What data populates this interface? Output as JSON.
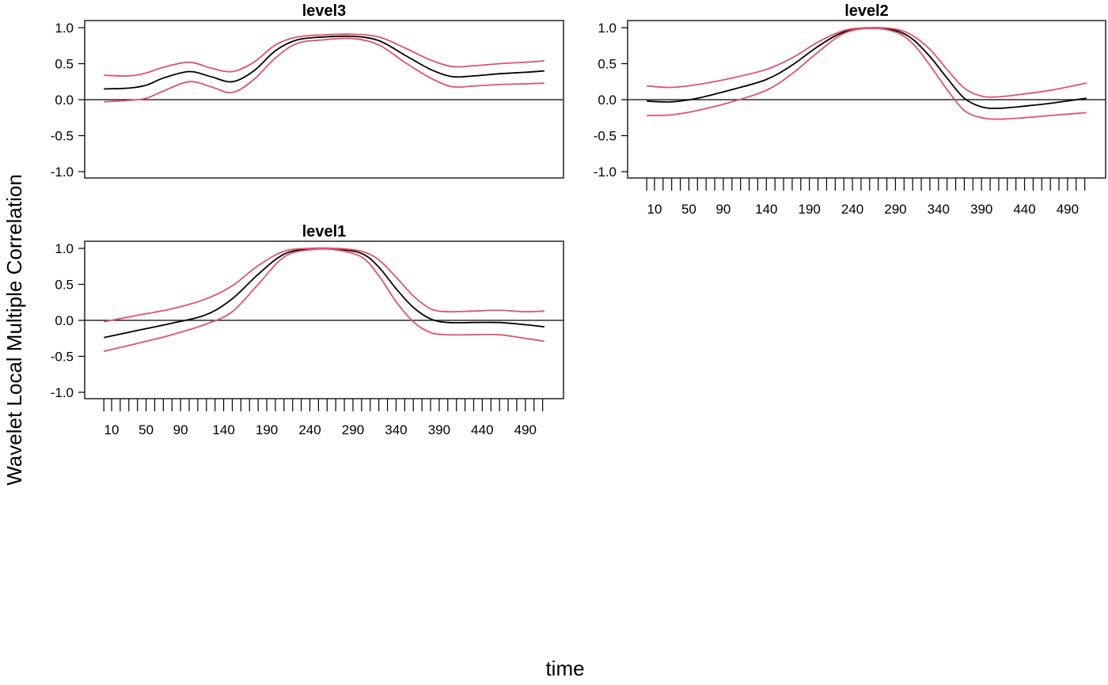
{
  "figure": {
    "ylabel": "Wavelet Local Multiple Correlation",
    "xlabel": "time"
  },
  "chart_data": [
    {
      "type": "line",
      "title": "level3",
      "xlim": [
        1,
        512
      ],
      "ylim": [
        -1.0,
        1.0
      ],
      "y_ticks": [
        "-1.0",
        "-0.5",
        "0.0",
        "0.5",
        "1.0"
      ],
      "x_ticks_shown": false,
      "reference_line": 0,
      "colors": {
        "estimate": "#000000",
        "bounds": "#DF536B"
      },
      "x": [
        1,
        30,
        50,
        70,
        100,
        125,
        150,
        175,
        200,
        225,
        255,
        290,
        320,
        350,
        380,
        405,
        430,
        460,
        490,
        512
      ],
      "series": [
        {
          "values": [
            0.15,
            0.16,
            0.2,
            0.3,
            0.39,
            0.32,
            0.25,
            0.4,
            0.68,
            0.83,
            0.87,
            0.88,
            0.82,
            0.62,
            0.42,
            0.32,
            0.33,
            0.36,
            0.38,
            0.4
          ]
        },
        {
          "values": [
            0.34,
            0.33,
            0.37,
            0.45,
            0.52,
            0.44,
            0.39,
            0.52,
            0.76,
            0.87,
            0.9,
            0.91,
            0.87,
            0.72,
            0.55,
            0.46,
            0.47,
            0.5,
            0.52,
            0.54
          ]
        },
        {
          "values": [
            -0.03,
            -0.01,
            0.02,
            0.12,
            0.25,
            0.18,
            0.1,
            0.28,
            0.58,
            0.78,
            0.83,
            0.85,
            0.76,
            0.52,
            0.3,
            0.18,
            0.19,
            0.21,
            0.22,
            0.23
          ]
        }
      ]
    },
    {
      "type": "line",
      "title": "level2",
      "xlim": [
        1,
        512
      ],
      "ylim": [
        -1.0,
        1.0
      ],
      "y_ticks": [
        "-1.0",
        "-0.5",
        "0.0",
        "0.5",
        "1.0"
      ],
      "x_tick_values": [
        1,
        10,
        20,
        30,
        40,
        50,
        60,
        70,
        80,
        90,
        100,
        110,
        120,
        130,
        140,
        150,
        160,
        170,
        180,
        190,
        200,
        210,
        220,
        230,
        240,
        250,
        260,
        270,
        280,
        290,
        300,
        310,
        320,
        330,
        340,
        350,
        360,
        370,
        380,
        390,
        400,
        410,
        420,
        430,
        440,
        450,
        460,
        470,
        480,
        490,
        500,
        510
      ],
      "x_tick_labels": [
        "10",
        "50",
        "90",
        "140",
        "190",
        "240",
        "290",
        "340",
        "390",
        "440",
        "490"
      ],
      "reference_line": 0,
      "colors": {
        "estimate": "#000000",
        "bounds": "#DF536B"
      },
      "x": [
        1,
        30,
        60,
        100,
        140,
        170,
        200,
        230,
        260,
        290,
        310,
        330,
        350,
        370,
        390,
        410,
        440,
        470,
        512
      ],
      "series": [
        {
          "values": [
            -0.02,
            -0.03,
            0.02,
            0.14,
            0.28,
            0.48,
            0.74,
            0.94,
            0.99,
            0.96,
            0.84,
            0.6,
            0.3,
            0.02,
            -0.1,
            -0.12,
            -0.09,
            -0.05,
            0.02
          ]
        },
        {
          "values": [
            0.19,
            0.17,
            0.21,
            0.3,
            0.42,
            0.58,
            0.8,
            0.96,
            1.0,
            0.98,
            0.89,
            0.7,
            0.42,
            0.16,
            0.05,
            0.04,
            0.08,
            0.13,
            0.23
          ]
        },
        {
          "values": [
            -0.22,
            -0.21,
            -0.15,
            -0.03,
            0.13,
            0.36,
            0.66,
            0.92,
            0.99,
            0.94,
            0.78,
            0.48,
            0.14,
            -0.15,
            -0.25,
            -0.27,
            -0.25,
            -0.22,
            -0.18
          ]
        }
      ]
    },
    {
      "type": "line",
      "title": "level1",
      "xlim": [
        1,
        512
      ],
      "ylim": [
        -1.0,
        1.0
      ],
      "y_ticks": [
        "-1.0",
        "-0.5",
        "0.0",
        "0.5",
        "1.0"
      ],
      "x_tick_values": [
        1,
        10,
        20,
        30,
        40,
        50,
        60,
        70,
        80,
        90,
        100,
        110,
        120,
        130,
        140,
        150,
        160,
        170,
        180,
        190,
        200,
        210,
        220,
        230,
        240,
        250,
        260,
        270,
        280,
        290,
        300,
        310,
        320,
        330,
        340,
        350,
        360,
        370,
        380,
        390,
        400,
        410,
        420,
        430,
        440,
        450,
        460,
        470,
        480,
        490,
        500,
        510
      ],
      "x_tick_labels": [
        "10",
        "50",
        "90",
        "140",
        "190",
        "240",
        "290",
        "340",
        "390",
        "440",
        "490"
      ],
      "reference_line": 0,
      "colors": {
        "estimate": "#000000",
        "bounds": "#DF536B"
      },
      "x": [
        1,
        40,
        80,
        120,
        150,
        180,
        210,
        240,
        270,
        300,
        320,
        340,
        360,
        380,
        400,
        430,
        460,
        490,
        512
      ],
      "series": [
        {
          "values": [
            -0.24,
            -0.14,
            -0.04,
            0.08,
            0.3,
            0.64,
            0.92,
            0.99,
            0.99,
            0.93,
            0.74,
            0.44,
            0.18,
            0.02,
            -0.03,
            -0.03,
            -0.03,
            -0.06,
            -0.09
          ]
        },
        {
          "values": [
            -0.02,
            0.07,
            0.16,
            0.3,
            0.48,
            0.76,
            0.96,
            1.0,
            1.0,
            0.96,
            0.84,
            0.6,
            0.34,
            0.16,
            0.12,
            0.13,
            0.14,
            0.12,
            0.13
          ]
        },
        {
          "values": [
            -0.43,
            -0.32,
            -0.2,
            -0.05,
            0.12,
            0.5,
            0.88,
            0.98,
            0.98,
            0.88,
            0.62,
            0.26,
            -0.02,
            -0.17,
            -0.2,
            -0.2,
            -0.2,
            -0.25,
            -0.29
          ]
        }
      ]
    }
  ]
}
